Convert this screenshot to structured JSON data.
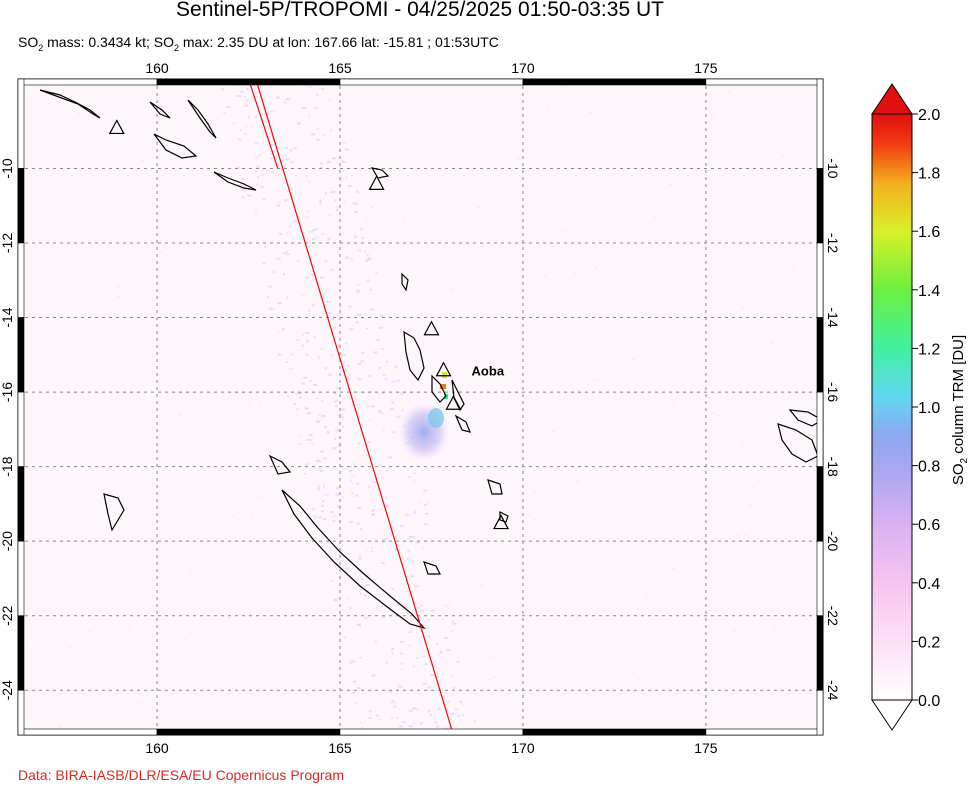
{
  "header": {
    "title": "Sentinel-5P/TROPOMI - 04/25/2025 01:50-03:35 UT",
    "subtitle_prefix": "SO",
    "subtitle_sub1": "2",
    "subtitle_mid": " mass: 0.3434 kt; SO",
    "subtitle_sub2": "2",
    "subtitle_rest": " max: 2.35 DU at lon: 167.66 lat: -15.81 ; 01:53UTC"
  },
  "map": {
    "lon_range": [
      156.2,
      178.2
    ],
    "lat_range": [
      -25.2,
      -7.6
    ],
    "lon_ticks": [
      160,
      165,
      170,
      175
    ],
    "lat_ticks": [
      -10,
      -12,
      -14,
      -16,
      -18,
      -20,
      -22,
      -24
    ],
    "lon_tick_labels": [
      "160",
      "165",
      "170",
      "175"
    ],
    "lat_tick_labels": [
      "-10",
      "-12",
      "-14",
      "-16",
      "-18",
      "-20",
      "-22",
      "-24"
    ],
    "gridlines": true,
    "volcano": {
      "name": "Aoba",
      "lon": 167.83,
      "lat": -15.4
    },
    "other_volcanoes": [
      {
        "lon": 158.9,
        "lat": -8.9
      },
      {
        "lon": 166.0,
        "lat": -10.4
      },
      {
        "lon": 167.5,
        "lat": -14.3
      },
      {
        "lon": 168.1,
        "lat": -16.3
      },
      {
        "lon": 169.4,
        "lat": -19.5
      }
    ],
    "orbit_edges": [
      {
        "from": [
          162.7,
          -7.6
        ],
        "to": [
          168.1,
          -25.2
        ]
      },
      {
        "from": [
          162.5,
          -7.6
        ],
        "to": [
          163.3,
          -10.0
        ]
      }
    ],
    "so2_max": {
      "value": 2.35,
      "lon": 167.66,
      "lat": -15.81
    }
  },
  "colorbar": {
    "min": 0.0,
    "max": 2.0,
    "tick_labels": [
      "0.0",
      "0.2",
      "0.4",
      "0.6",
      "0.8",
      "1.0",
      "1.2",
      "1.4",
      "1.6",
      "1.8",
      "2.0"
    ],
    "title": "SO2 column TRM [DU]",
    "title_main": "SO",
    "title_sub": "2",
    "title_rest": " column TRM [DU]",
    "colors": [
      "#ffffff",
      "#fde6f6",
      "#f6c4f0",
      "#d9b2f2",
      "#b0a8f0",
      "#8ea8f2",
      "#5fd8f0",
      "#40f0a0",
      "#6cf040",
      "#d8f028",
      "#f5b11e",
      "#f03a10",
      "#e01010"
    ]
  },
  "footer": {
    "credit": "Data: BIRA-IASB/DLR/ESA/EU Copernicus Program"
  },
  "styles": {
    "orbit_color": "#ff0000",
    "credit_color": "#e0281e",
    "coast_color": "#000000"
  }
}
